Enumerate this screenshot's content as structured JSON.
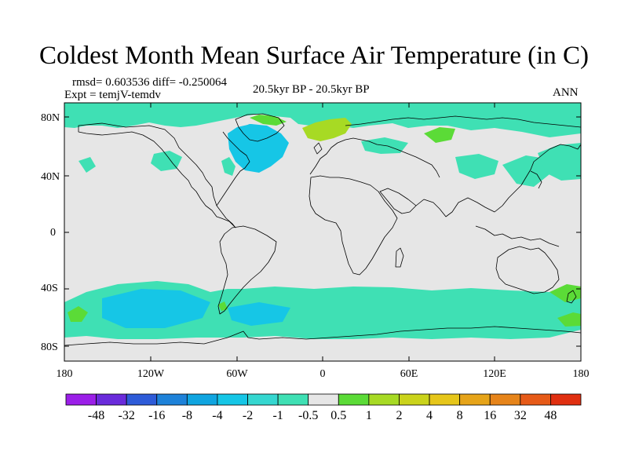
{
  "title": "Coldest Month Mean Surface Air Temperature (in C)",
  "stats": "rmsd= 0.603536  diff= -0.250064",
  "experiment": "Expt = temjV-temdv",
  "period": "20.5kyr BP - 20.5kyr BP",
  "season": "ANN",
  "lat_labels": [
    "80N",
    "40N",
    "0",
    "40S",
    "80S"
  ],
  "lon_labels": [
    "180",
    "120W",
    "60W",
    "0",
    "60E",
    "120E",
    "180"
  ],
  "colorbar": {
    "colors": [
      "#9B1FE8",
      "#6A2BDB",
      "#2E5BD8",
      "#1E82D9",
      "#10A5E0",
      "#16C6E6",
      "#35D7D0",
      "#3FE0B4",
      "#E6E6E6",
      "#5BDB37",
      "#A7DA24",
      "#CAD31B",
      "#E6C61A",
      "#E6A419",
      "#E6841A",
      "#E65A18",
      "#E02F10"
    ],
    "labels": [
      "-48",
      "-32",
      "-16",
      "-8",
      "-4",
      "-2",
      "-1",
      "-0.5",
      "0.5",
      "1",
      "2",
      "4",
      "8",
      "16",
      "32",
      "48"
    ]
  },
  "field_colors": {
    "background": "#E6E6E6",
    "light_negative": "#3FE0B4",
    "moderate_negative": "#16C6E6",
    "strong_negative": "#10A5E0",
    "light_positive": "#5BDB37",
    "moderate_positive": "#A7DA24",
    "strong_positive": "#E6A419"
  }
}
